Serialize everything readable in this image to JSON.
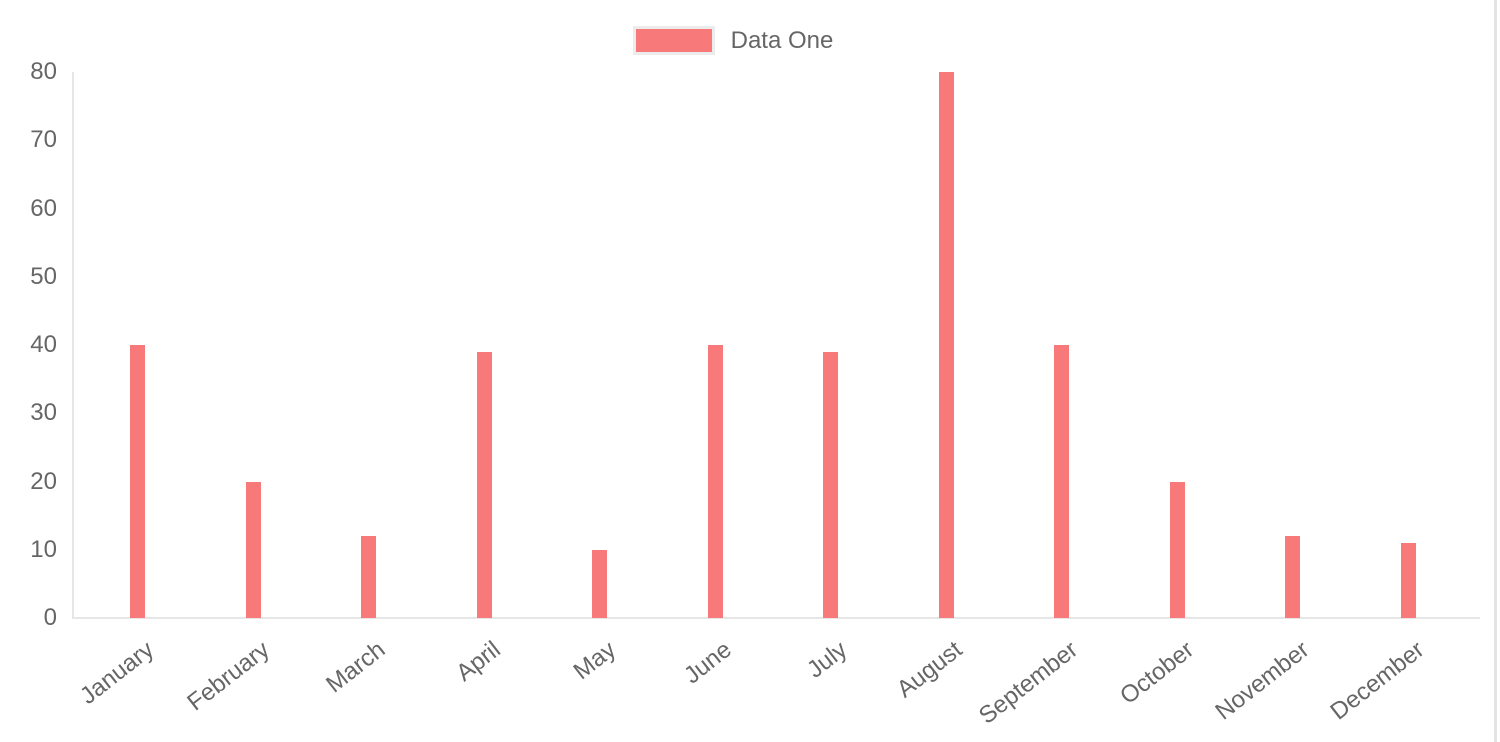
{
  "page": {
    "background_color": "#ffffff",
    "right_border_color": "#e4e4e4"
  },
  "legend": {
    "label": "Data One",
    "swatch_color": "#f87979",
    "swatch_border_color": "#ececec",
    "text_color": "#666666",
    "position": "top"
  },
  "chart_data": {
    "type": "bar",
    "title": "",
    "xlabel": "",
    "ylabel": "",
    "categories": [
      "January",
      "February",
      "March",
      "April",
      "May",
      "June",
      "July",
      "August",
      "September",
      "October",
      "November",
      "December"
    ],
    "series": [
      {
        "name": "Data One",
        "color": "#f87979",
        "values": [
          40,
          20,
          12,
          39,
          10,
          40,
          39,
          80,
          40,
          20,
          12,
          11
        ]
      }
    ],
    "ylim": [
      0,
      80
    ],
    "yticks": [
      0,
      10,
      20,
      30,
      40,
      50,
      60,
      70,
      80
    ],
    "grid": false,
    "legend_position": "top",
    "axis_line_color": "#e6e6e6",
    "tick_text_color": "#666666",
    "x_label_rotation_deg": -38
  }
}
